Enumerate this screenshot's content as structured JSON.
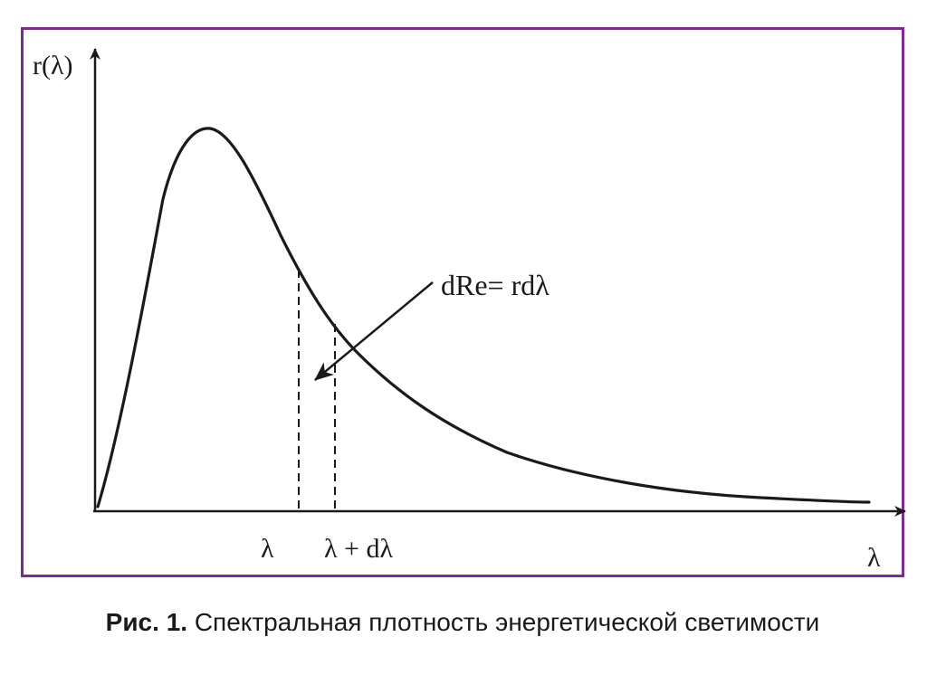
{
  "figure": {
    "y_axis_label": "r(λ)",
    "x_axis_label": "λ",
    "tick_lambda": "λ",
    "tick_lambda_dlambda": "λ + dλ",
    "annotation": "dRe= rdλ"
  },
  "caption": {
    "prefix": "Рис. 1.",
    "text": "Спектральная плотность энергетической светимости"
  },
  "colors": {
    "frame": "#7b2c8e",
    "ink": "#1a1a1a"
  }
}
